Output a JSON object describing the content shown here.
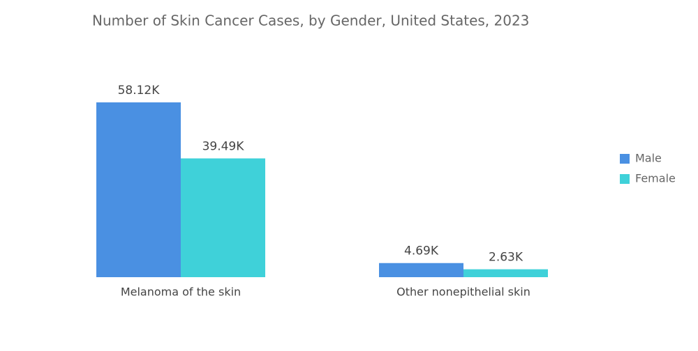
{
  "chart_data": {
    "type": "bar",
    "title": "Number of Skin Cancer Cases, by Gender, United States, 2023",
    "categories": [
      "Melanoma of the skin",
      "Other nonepithelial skin"
    ],
    "series": [
      {
        "name": "Male",
        "color": "#4a90e2",
        "values": [
          58120,
          4690
        ],
        "value_labels": [
          "58.12K",
          "4.69K"
        ]
      },
      {
        "name": "Female",
        "color": "#3fd1d9",
        "values": [
          39490,
          2630
        ],
        "value_labels": [
          "39.49K",
          "2.63K"
        ]
      }
    ],
    "legend": "right"
  }
}
